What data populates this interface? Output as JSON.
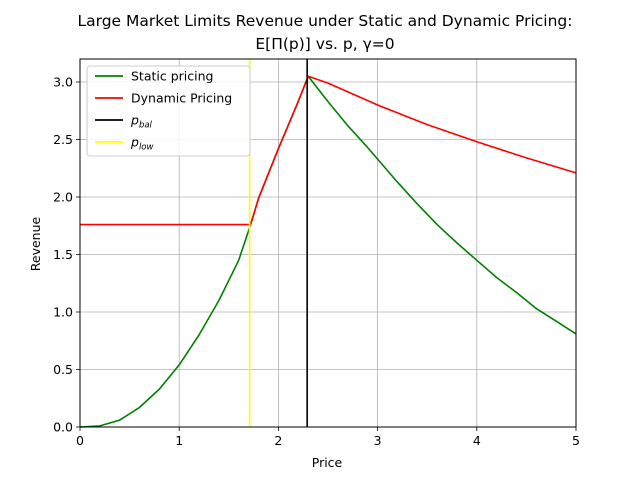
{
  "chart_data": {
    "type": "line",
    "title_line1": "Large Market Limits Revenue under Static and Dynamic Pricing:",
    "title_line2": "E[Π(p)] vs. p, γ=0",
    "xlabel": "Price",
    "ylabel": "Revenue",
    "xlim": [
      0,
      5
    ],
    "ylim": [
      0,
      3.2
    ],
    "xticks": [
      0,
      1,
      2,
      3,
      4,
      5
    ],
    "xtick_labels": [
      "0",
      "1",
      "2",
      "3",
      "4",
      "5"
    ],
    "yticks": [
      0,
      0.5,
      1.0,
      1.5,
      2.0,
      2.5,
      3.0
    ],
    "ytick_labels": [
      "0.0",
      "0.5",
      "1.0",
      "1.5",
      "2.0",
      "2.5",
      "3.0"
    ],
    "grid": true,
    "legend_position": "upper-left",
    "series": [
      {
        "name": "Static pricing",
        "color": "#008000",
        "x": [
          0,
          0.2,
          0.4,
          0.6,
          0.8,
          1.0,
          1.2,
          1.4,
          1.6,
          1.72,
          1.8,
          2.0,
          2.2,
          2.3,
          2.5,
          2.7,
          2.9,
          3.0,
          3.2,
          3.4,
          3.6,
          3.8,
          4.0,
          4.2,
          4.4,
          4.6,
          4.8,
          5.0
        ],
        "y": [
          0,
          0.01,
          0.06,
          0.17,
          0.33,
          0.54,
          0.8,
          1.1,
          1.45,
          1.76,
          1.99,
          2.42,
          2.83,
          3.05,
          2.83,
          2.62,
          2.43,
          2.33,
          2.13,
          1.94,
          1.76,
          1.6,
          1.45,
          1.3,
          1.17,
          1.03,
          0.92,
          0.81
        ]
      },
      {
        "name": "Dynamic Pricing",
        "color": "#ff0000",
        "x": [
          0,
          0.5,
          1.0,
          1.5,
          1.72,
          1.8,
          2.0,
          2.2,
          2.3,
          2.5,
          3.0,
          3.5,
          4.0,
          4.5,
          5.0
        ],
        "y": [
          1.76,
          1.76,
          1.76,
          1.76,
          1.76,
          1.99,
          2.42,
          2.83,
          3.05,
          2.99,
          2.8,
          2.63,
          2.48,
          2.34,
          2.21
        ]
      }
    ],
    "vlines": [
      {
        "name_base": "p",
        "name_sub": "bal",
        "x": 2.29,
        "color": "#000000"
      },
      {
        "name_base": "p",
        "name_sub": "low",
        "x": 1.71,
        "color": "#ffff00"
      }
    ]
  }
}
